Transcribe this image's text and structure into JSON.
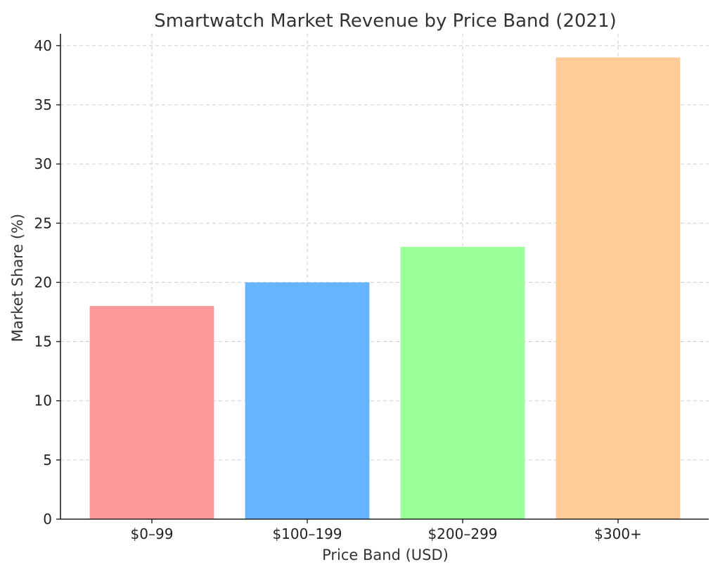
{
  "chart_data": {
    "type": "bar",
    "title": "Smartwatch Market Revenue by Price Band (2021)",
    "xlabel": "Price Band (USD)",
    "ylabel": "Market Share (%)",
    "categories": [
      "$0–99",
      "$100–199",
      "$200–299",
      "$300+"
    ],
    "values": [
      18,
      20,
      23,
      39
    ],
    "colors": [
      "#ff9999",
      "#66b3ff",
      "#99ff99",
      "#ffcc99"
    ],
    "ylim": [
      0,
      41
    ],
    "yticks": [
      0,
      5,
      10,
      15,
      20,
      25,
      30,
      35,
      40
    ],
    "grid": true,
    "legend": "none"
  }
}
